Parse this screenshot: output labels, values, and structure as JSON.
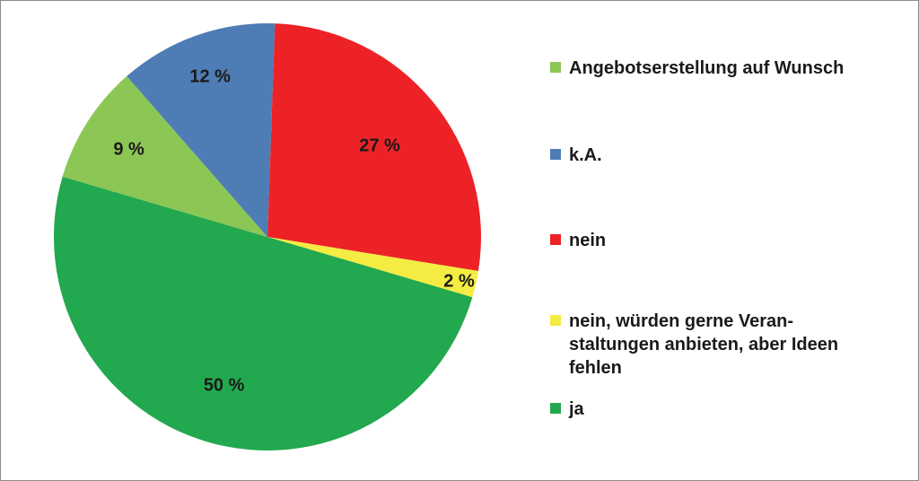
{
  "chart_data": {
    "type": "pie",
    "slices": [
      {
        "label": "nein",
        "value": 27,
        "value_label": "27 %",
        "color": "#ec2227"
      },
      {
        "label": "nein, würden gerne Veran-\nstaltungen anbieten, aber Ideen\nfehlen",
        "value": 2,
        "value_label": "2 %",
        "color": "#f4ec42"
      },
      {
        "label": "ja",
        "value": 50,
        "value_label": "50 %",
        "color": "#22a84e"
      },
      {
        "label": "Angebotserstellung auf Wunsch",
        "value": 9,
        "value_label": "9 %",
        "color": "#8cc655"
      },
      {
        "label": "k.A.",
        "value": 12,
        "value_label": "12 %",
        "color": "#4e7cb4"
      }
    ],
    "legend": [
      {
        "label": "Angebotserstellung auf Wunsch",
        "color": "#8cc655"
      },
      {
        "label": "k.A.",
        "color": "#4e7cb4"
      },
      {
        "label": "nein",
        "color": "#ec2227"
      },
      {
        "label": "nein, würden gerne Veran-\nstaltungen anbieten, aber Ideen\nfehlen",
        "color": "#f4ec42"
      },
      {
        "label": "ja",
        "color": "#22a84e"
      }
    ],
    "legend_position": "right"
  }
}
